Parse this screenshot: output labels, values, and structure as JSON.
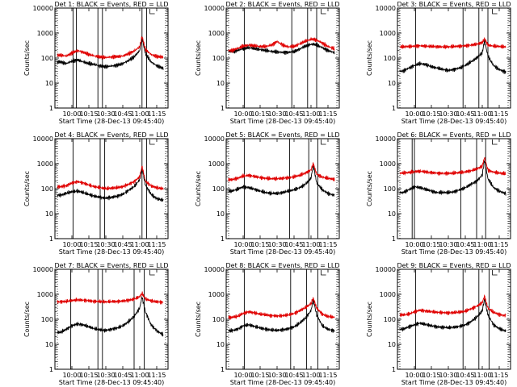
{
  "figure": {
    "start_time_label": "Start Time (28-Dec-13 09:45:40)",
    "ylabel": "Counts/sec",
    "colors": {
      "events": "#000000",
      "lld": "#e00000"
    }
  },
  "chart_data": [
    {
      "type": "line",
      "title": "Det 1: BLACK = Events, RED = LLD",
      "xlabel": "Start Time (28-Dec-13 09:45:40)",
      "ylabel": "Counts/sec",
      "x_ticks": [
        "10:00",
        "10:15",
        "10:30",
        "10:45",
        "11:00",
        "11:15"
      ],
      "y_ticks": [
        "1",
        "10",
        "100",
        "1000",
        "10000"
      ],
      "ylim": [
        1,
        10000
      ],
      "yscale": "log",
      "x": [
        "09:50",
        "09:55",
        "10:00",
        "10:05",
        "10:10",
        "10:15",
        "10:20",
        "10:25",
        "10:30",
        "10:35",
        "10:40",
        "10:45",
        "10:50",
        "10:55",
        "11:00",
        "11:02",
        "11:05",
        "11:10",
        "11:15",
        "11:20"
      ],
      "series": [
        {
          "name": "Events",
          "values": [
            70,
            60,
            75,
            85,
            70,
            60,
            55,
            48,
            45,
            48,
            52,
            60,
            80,
            110,
            200,
            700,
            150,
            70,
            50,
            40
          ]
        },
        {
          "name": "LLD",
          "values": [
            130,
            120,
            160,
            200,
            170,
            140,
            120,
            110,
            105,
            110,
            115,
            120,
            150,
            190,
            280,
            750,
            220,
            140,
            115,
            110
          ]
        }
      ]
    },
    {
      "type": "line",
      "title": "Det 2: BLACK = Events, RED = LLD",
      "xlabel": "Start Time (28-Dec-13 09:45:40)",
      "ylabel": "Counts/sec",
      "x_ticks": [
        "10:00",
        "10:15",
        "10:30",
        "10:45",
        "11:00",
        "11:15"
      ],
      "y_ticks": [
        "1",
        "10",
        "100",
        "1000",
        "10000"
      ],
      "ylim": [
        1,
        10000
      ],
      "yscale": "log",
      "x": [
        "09:50",
        "09:55",
        "10:00",
        "10:05",
        "10:10",
        "10:15",
        "10:20",
        "10:25",
        "10:30",
        "10:35",
        "10:40",
        "10:45",
        "10:50",
        "10:55",
        "11:00",
        "11:02",
        "11:05",
        "11:10",
        "11:15",
        "11:20"
      ],
      "series": [
        {
          "name": "Events",
          "values": [
            180,
            200,
            240,
            260,
            240,
            220,
            200,
            185,
            175,
            170,
            170,
            180,
            230,
            300,
            350,
            360,
            330,
            260,
            200,
            170
          ]
        },
        {
          "name": "LLD",
          "values": [
            200,
            240,
            300,
            330,
            310,
            290,
            290,
            330,
            460,
            330,
            280,
            290,
            370,
            470,
            560,
            570,
            520,
            400,
            290,
            240
          ]
        }
      ]
    },
    {
      "type": "line",
      "title": "Det 3: BLACK = Events, RED = LLD",
      "xlabel": "Start Time (28-Dec-13 09:45:40)",
      "ylabel": "Counts/sec",
      "x_ticks": [
        "10:00",
        "10:15",
        "10:30",
        "10:45",
        "11:00",
        "11:15"
      ],
      "y_ticks": [
        "1",
        "10",
        "100",
        "1000",
        "10000"
      ],
      "ylim": [
        1,
        10000
      ],
      "yscale": "log",
      "x": [
        "09:50",
        "09:55",
        "10:00",
        "10:05",
        "10:10",
        "10:15",
        "10:20",
        "10:25",
        "10:30",
        "10:35",
        "10:40",
        "10:45",
        "10:50",
        "10:55",
        "11:00",
        "11:02",
        "11:05",
        "11:10",
        "11:15",
        "11:20"
      ],
      "series": [
        {
          "name": "Events",
          "values": [
            30,
            40,
            50,
            60,
            55,
            45,
            40,
            35,
            32,
            35,
            40,
            50,
            70,
            100,
            160,
            500,
            120,
            50,
            35,
            28
          ]
        },
        {
          "name": "LLD",
          "values": [
            280,
            290,
            300,
            310,
            300,
            290,
            285,
            280,
            280,
            290,
            300,
            310,
            330,
            360,
            420,
            600,
            330,
            300,
            290,
            280
          ]
        }
      ]
    },
    {
      "type": "line",
      "title": "Det 4: BLACK = Events, RED = LLD",
      "xlabel": "Start Time (28-Dec-13 09:45:40)",
      "ylabel": "Counts/sec",
      "x_ticks": [
        "10:00",
        "10:15",
        "10:30",
        "10:45",
        "11:00",
        "11:15"
      ],
      "y_ticks": [
        "1",
        "10",
        "100",
        "1000",
        "10000"
      ],
      "ylim": [
        1,
        10000
      ],
      "yscale": "log",
      "x": [
        "09:50",
        "09:55",
        "10:00",
        "10:05",
        "10:10",
        "10:15",
        "10:20",
        "10:25",
        "10:30",
        "10:35",
        "10:40",
        "10:45",
        "10:50",
        "10:55",
        "11:00",
        "11:02",
        "11:05",
        "11:10",
        "11:15",
        "11:20"
      ],
      "series": [
        {
          "name": "Events",
          "values": [
            55,
            65,
            75,
            80,
            70,
            58,
            50,
            45,
            42,
            45,
            50,
            60,
            85,
            120,
            230,
            700,
            140,
            60,
            40,
            35
          ]
        },
        {
          "name": "LLD",
          "values": [
            120,
            130,
            170,
            190,
            170,
            140,
            120,
            110,
            100,
            105,
            110,
            120,
            150,
            190,
            300,
            800,
            200,
            130,
            110,
            100
          ]
        }
      ]
    },
    {
      "type": "line",
      "title": "Det 5: BLACK = Events, RED = LLD",
      "xlabel": "Start Time (28-Dec-13 09:45:40)",
      "ylabel": "Counts/sec",
      "x_ticks": [
        "10:00",
        "10:15",
        "10:30",
        "10:45",
        "11:00",
        "11:15"
      ],
      "y_ticks": [
        "1",
        "10",
        "100",
        "1000",
        "10000"
      ],
      "ylim": [
        1,
        10000
      ],
      "yscale": "log",
      "x": [
        "09:50",
        "09:55",
        "10:00",
        "10:05",
        "10:10",
        "10:15",
        "10:20",
        "10:25",
        "10:30",
        "10:35",
        "10:40",
        "10:45",
        "10:50",
        "10:55",
        "11:00",
        "11:02",
        "11:05",
        "11:10",
        "11:15",
        "11:20"
      ],
      "series": [
        {
          "name": "Events",
          "values": [
            80,
            95,
            120,
            110,
            95,
            80,
            70,
            65,
            65,
            70,
            80,
            90,
            110,
            150,
            260,
            900,
            170,
            90,
            65,
            55
          ]
        },
        {
          "name": "LLD",
          "values": [
            230,
            260,
            320,
            340,
            310,
            280,
            260,
            250,
            250,
            260,
            275,
            300,
            340,
            420,
            560,
            1000,
            380,
            290,
            260,
            240
          ]
        }
      ]
    },
    {
      "type": "line",
      "title": "Det 6: BLACK = Events, RED = LLD",
      "xlabel": "Start Time (28-Dec-13 09:45:40)",
      "ylabel": "Counts/sec",
      "x_ticks": [
        "10:00",
        "10:15",
        "10:30",
        "10:45",
        "11:00",
        "11:15"
      ],
      "y_ticks": [
        "1",
        "10",
        "100",
        "1000",
        "10000"
      ],
      "ylim": [
        1,
        10000
      ],
      "yscale": "log",
      "x": [
        "09:50",
        "09:55",
        "10:00",
        "10:05",
        "10:10",
        "10:15",
        "10:20",
        "10:25",
        "10:30",
        "10:35",
        "10:40",
        "10:45",
        "10:50",
        "10:55",
        "11:00",
        "11:02",
        "11:05",
        "11:10",
        "11:15",
        "11:20"
      ],
      "series": [
        {
          "name": "Events",
          "values": [
            70,
            90,
            120,
            110,
            95,
            80,
            70,
            70,
            70,
            75,
            90,
            110,
            150,
            200,
            350,
            1400,
            250,
            110,
            80,
            65
          ]
        },
        {
          "name": "LLD",
          "values": [
            420,
            440,
            480,
            500,
            470,
            440,
            420,
            410,
            410,
            420,
            440,
            470,
            520,
            620,
            800,
            1800,
            550,
            460,
            420,
            400
          ]
        }
      ]
    },
    {
      "type": "line",
      "title": "Det 7: BLACK = Events, RED = LLD",
      "xlabel": "Start Time (28-Dec-13 09:45:40)",
      "ylabel": "Counts/sec",
      "x_ticks": [
        "10:00",
        "10:15",
        "10:30",
        "10:45",
        "11:00",
        "11:15"
      ],
      "y_ticks": [
        "1",
        "10",
        "100",
        "1000",
        "10000"
      ],
      "ylim": [
        1,
        10000
      ],
      "yscale": "log",
      "x": [
        "09:50",
        "09:55",
        "10:00",
        "10:05",
        "10:10",
        "10:15",
        "10:20",
        "10:25",
        "10:30",
        "10:35",
        "10:40",
        "10:45",
        "10:50",
        "10:55",
        "11:00",
        "11:02",
        "11:05",
        "11:10",
        "11:15",
        "11:20"
      ],
      "series": [
        {
          "name": "Events",
          "values": [
            30,
            40,
            55,
            65,
            60,
            50,
            42,
            38,
            36,
            40,
            45,
            55,
            80,
            130,
            280,
            800,
            200,
            60,
            35,
            25
          ]
        },
        {
          "name": "LLD",
          "values": [
            500,
            520,
            560,
            600,
            580,
            550,
            520,
            510,
            500,
            510,
            520,
            540,
            580,
            640,
            800,
            1100,
            650,
            550,
            500,
            480
          ]
        }
      ]
    },
    {
      "type": "line",
      "title": "Det 8: BLACK = Events, RED = LLD",
      "xlabel": "Start Time (28-Dec-13 09:45:40)",
      "ylabel": "Counts/sec",
      "x_ticks": [
        "10:00",
        "10:15",
        "10:30",
        "10:45",
        "11:00",
        "11:15"
      ],
      "y_ticks": [
        "1",
        "10",
        "100",
        "1000",
        "10000"
      ],
      "ylim": [
        1,
        10000
      ],
      "yscale": "log",
      "x": [
        "09:50",
        "09:55",
        "10:00",
        "10:05",
        "10:10",
        "10:15",
        "10:20",
        "10:25",
        "10:30",
        "10:35",
        "10:40",
        "10:45",
        "10:50",
        "10:55",
        "11:00",
        "11:02",
        "11:05",
        "11:10",
        "11:15",
        "11:20"
      ],
      "series": [
        {
          "name": "Events",
          "values": [
            35,
            40,
            55,
            60,
            52,
            45,
            40,
            37,
            36,
            38,
            42,
            50,
            70,
            110,
            220,
            600,
            150,
            55,
            40,
            35
          ]
        },
        {
          "name": "LLD",
          "values": [
            120,
            130,
            170,
            200,
            180,
            160,
            150,
            140,
            135,
            140,
            150,
            170,
            220,
            290,
            420,
            700,
            280,
            160,
            130,
            120
          ]
        }
      ]
    },
    {
      "type": "line",
      "title": "Det 9: BLACK = Events, RED = LLD",
      "xlabel": "Start Time (28-Dec-13 09:45:40)",
      "ylabel": "Counts/sec",
      "x_ticks": [
        "10:00",
        "10:15",
        "10:30",
        "10:45",
        "11:00",
        "11:15"
      ],
      "y_ticks": [
        "1",
        "10",
        "100",
        "1000",
        "10000"
      ],
      "ylim": [
        1,
        10000
      ],
      "yscale": "log",
      "x": [
        "09:50",
        "09:55",
        "10:00",
        "10:05",
        "10:10",
        "10:15",
        "10:20",
        "10:25",
        "10:30",
        "10:35",
        "10:40",
        "10:45",
        "10:50",
        "10:55",
        "11:00",
        "11:02",
        "11:05",
        "11:10",
        "11:15",
        "11:20"
      ],
      "series": [
        {
          "name": "Events",
          "values": [
            40,
            50,
            60,
            70,
            62,
            55,
            50,
            48,
            46,
            48,
            52,
            60,
            80,
            120,
            220,
            650,
            150,
            60,
            42,
            35
          ]
        },
        {
          "name": "LLD",
          "values": [
            150,
            160,
            200,
            230,
            215,
            200,
            190,
            185,
            180,
            185,
            195,
            210,
            260,
            330,
            460,
            850,
            280,
            190,
            155,
            140
          ]
        }
      ]
    }
  ]
}
